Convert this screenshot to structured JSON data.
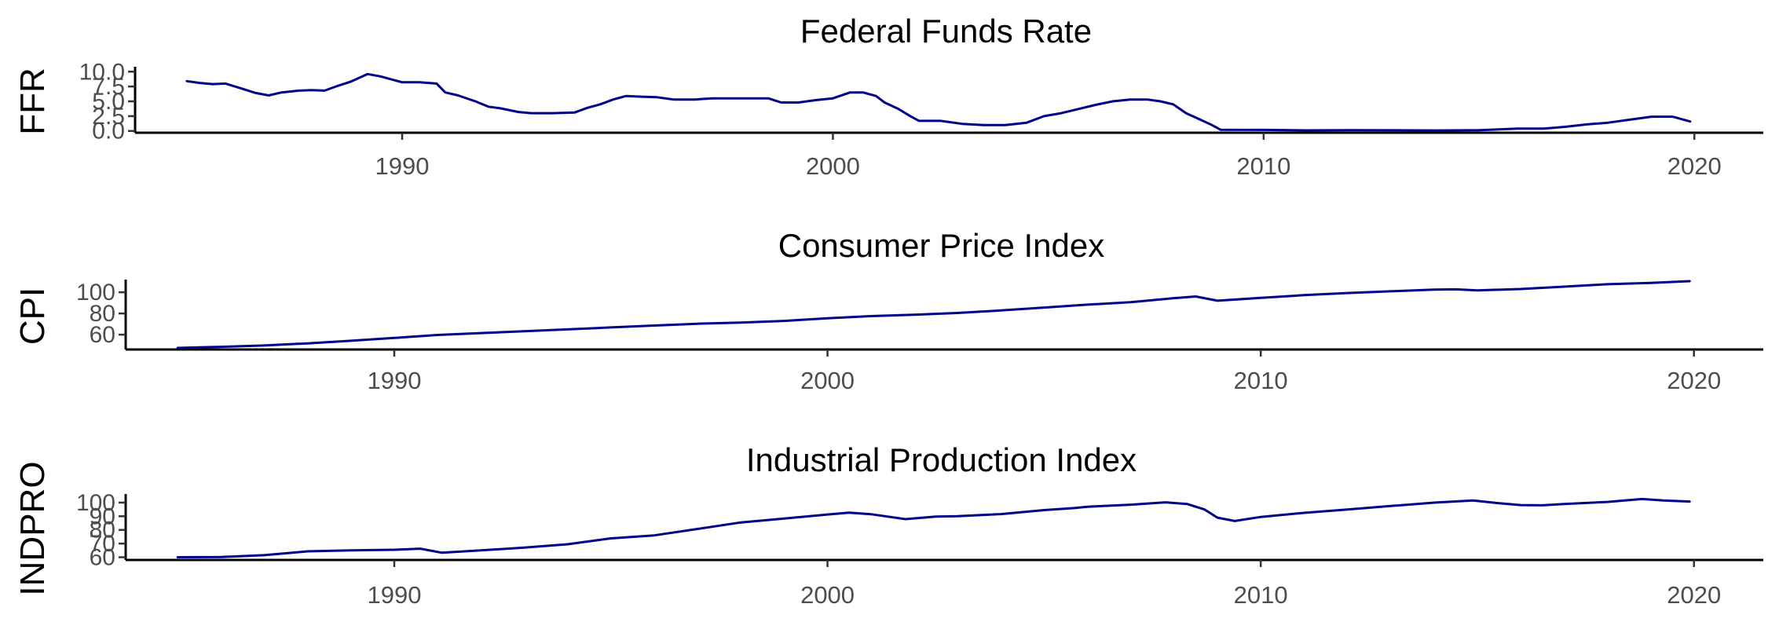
{
  "chart_data": [
    {
      "type": "line",
      "title": "Federal Funds Rate",
      "ylabel": "FFR",
      "xlabel": "",
      "xlim": [
        1983.8,
        2021.6
      ],
      "ylim": [
        -0.3,
        10.3
      ],
      "x_ticks": [
        1990,
        2000,
        2010,
        2020
      ],
      "x_tick_labels": [
        "1990",
        "2000",
        "2010",
        "2020"
      ],
      "y_ticks": [
        0,
        2.5,
        5,
        7.5,
        10
      ],
      "y_tick_labels": [
        "0.0",
        "2.5",
        "5.0",
        "7.5",
        "10.0"
      ],
      "grid": false,
      "color": "#00008B",
      "series": [
        {
          "x": [
            1985.0,
            1985.3,
            1985.6,
            1985.9,
            1986.3,
            1986.6,
            1986.9,
            1987.2,
            1987.6,
            1987.9,
            1988.2,
            1988.5,
            1988.8,
            1989.2,
            1989.5,
            1989.8,
            1990.0,
            1990.4,
            1990.8,
            1991.0,
            1991.3,
            1991.7,
            1992.0,
            1992.3,
            1992.7,
            1993.0,
            1993.5,
            1994.0,
            1994.3,
            1994.6,
            1994.9,
            1995.2,
            1995.5,
            1995.9,
            1996.3,
            1996.8,
            1997.2,
            1997.6,
            1998.0,
            1998.5,
            1998.8,
            1999.2,
            1999.6,
            2000.0,
            2000.4,
            2000.7,
            2001.0,
            2001.2,
            2001.5,
            2001.8,
            2002.0,
            2002.5,
            2003.0,
            2003.5,
            2004.0,
            2004.5,
            2004.9,
            2005.3,
            2005.7,
            2006.1,
            2006.5,
            2006.9,
            2007.3,
            2007.6,
            2007.9,
            2008.2,
            2008.5,
            2008.8,
            2009.0,
            2010.0,
            2011.0,
            2012.0,
            2013.0,
            2014.0,
            2015.0,
            2015.9,
            2016.5,
            2017.0,
            2017.5,
            2018.0,
            2018.5,
            2019.0,
            2019.5,
            2019.9
          ],
          "y": [
            8.4,
            8.1,
            7.9,
            8.0,
            7.1,
            6.4,
            6.0,
            6.5,
            6.8,
            6.9,
            6.8,
            7.6,
            8.3,
            9.6,
            9.2,
            8.6,
            8.2,
            8.2,
            8.0,
            6.5,
            6.0,
            5.0,
            4.1,
            3.8,
            3.2,
            3.0,
            3.0,
            3.1,
            3.9,
            4.5,
            5.3,
            5.9,
            5.8,
            5.7,
            5.3,
            5.3,
            5.5,
            5.5,
            5.5,
            5.5,
            4.8,
            4.8,
            5.2,
            5.5,
            6.5,
            6.5,
            5.9,
            4.8,
            3.8,
            2.5,
            1.7,
            1.7,
            1.2,
            1.0,
            1.0,
            1.4,
            2.5,
            3.0,
            3.7,
            4.4,
            5.0,
            5.3,
            5.3,
            5.0,
            4.5,
            3.0,
            2.0,
            1.0,
            0.2,
            0.18,
            0.1,
            0.14,
            0.11,
            0.09,
            0.13,
            0.4,
            0.4,
            0.7,
            1.1,
            1.4,
            1.9,
            2.4,
            2.4,
            1.6
          ]
        }
      ]
    },
    {
      "type": "line",
      "title": "Consumer Price Index",
      "ylabel": "CPI",
      "xlabel": "",
      "xlim": [
        1983.8,
        2021.6
      ],
      "ylim": [
        46,
        109
      ],
      "x_ticks": [
        1990,
        2000,
        2010,
        2020
      ],
      "x_tick_labels": [
        "1990",
        "2000",
        "2010",
        "2020"
      ],
      "y_ticks": [
        60,
        80,
        100
      ],
      "y_tick_labels": [
        "60",
        "80",
        "100"
      ],
      "grid": false,
      "color": "#00008B",
      "series": [
        {
          "x": [
            1985.0,
            1986.0,
            1987.0,
            1988.0,
            1989.0,
            1990.0,
            1991.0,
            1992.0,
            1993.0,
            1994.0,
            1995.0,
            1996.0,
            1997.0,
            1998.0,
            1999.0,
            2000.0,
            2001.0,
            2002.0,
            2003.0,
            2004.0,
            2005.0,
            2006.0,
            2007.0,
            2008.0,
            2008.5,
            2009.0,
            2010.0,
            2011.0,
            2012.0,
            2013.0,
            2014.0,
            2014.5,
            2015.0,
            2016.0,
            2017.0,
            2018.0,
            2019.0,
            2019.9
          ],
          "y": [
            47.5,
            48.5,
            49.8,
            51.8,
            54.2,
            56.9,
            59.7,
            61.5,
            63.3,
            65.0,
            66.8,
            68.6,
            70.3,
            71.4,
            73.0,
            75.4,
            77.5,
            78.8,
            80.5,
            82.8,
            85.6,
            88.3,
            90.6,
            94.5,
            96.0,
            92.0,
            94.7,
            97.3,
            99.3,
            100.9,
            102.5,
            102.8,
            101.8,
            103.1,
            105.3,
            107.6,
            108.8,
            110.5
          ]
        }
      ]
    },
    {
      "type": "line",
      "title": "Industrial Production Index",
      "ylabel": "INDPRO",
      "xlabel": "",
      "xlim": [
        1983.8,
        2021.6
      ],
      "ylim": [
        58,
        104
      ],
      "x_ticks": [
        1990,
        2000,
        2010,
        2020
      ],
      "x_tick_labels": [
        "1990",
        "2000",
        "2010",
        "2020"
      ],
      "y_ticks": [
        60,
        70,
        80,
        90,
        100
      ],
      "y_tick_labels": [
        "60",
        "70",
        "80",
        "90",
        "100"
      ],
      "grid": false,
      "color": "#00008B",
      "series": [
        {
          "x": [
            1985.0,
            1986.0,
            1987.0,
            1988.0,
            1989.0,
            1990.0,
            1990.6,
            1991.1,
            1992.0,
            1993.0,
            1994.0,
            1995.0,
            1996.0,
            1997.0,
            1998.0,
            1999.0,
            2000.0,
            2000.5,
            2001.0,
            2001.8,
            2002.5,
            2003.0,
            2004.0,
            2005.0,
            2005.7,
            2006.0,
            2007.0,
            2007.8,
            2008.3,
            2008.7,
            2009.0,
            2009.4,
            2010.0,
            2011.0,
            2012.0,
            2013.0,
            2014.0,
            2014.9,
            2015.5,
            2016.0,
            2016.5,
            2017.0,
            2018.0,
            2018.8,
            2019.3,
            2019.9
          ],
          "y": [
            60.0,
            60.2,
            61.5,
            64.3,
            65.0,
            65.5,
            66.3,
            63.3,
            65.0,
            67.0,
            69.5,
            73.8,
            76.0,
            80.7,
            85.5,
            88.3,
            91.3,
            92.6,
            91.5,
            87.9,
            89.8,
            90.0,
            91.6,
            94.5,
            96.0,
            97.0,
            98.5,
            100.2,
            99.0,
            95.0,
            89.0,
            86.5,
            89.5,
            92.5,
            95.0,
            97.5,
            100.0,
            101.5,
            99.5,
            98.2,
            98.0,
            99.0,
            100.5,
            102.6,
            101.5,
            100.8
          ]
        }
      ]
    }
  ]
}
